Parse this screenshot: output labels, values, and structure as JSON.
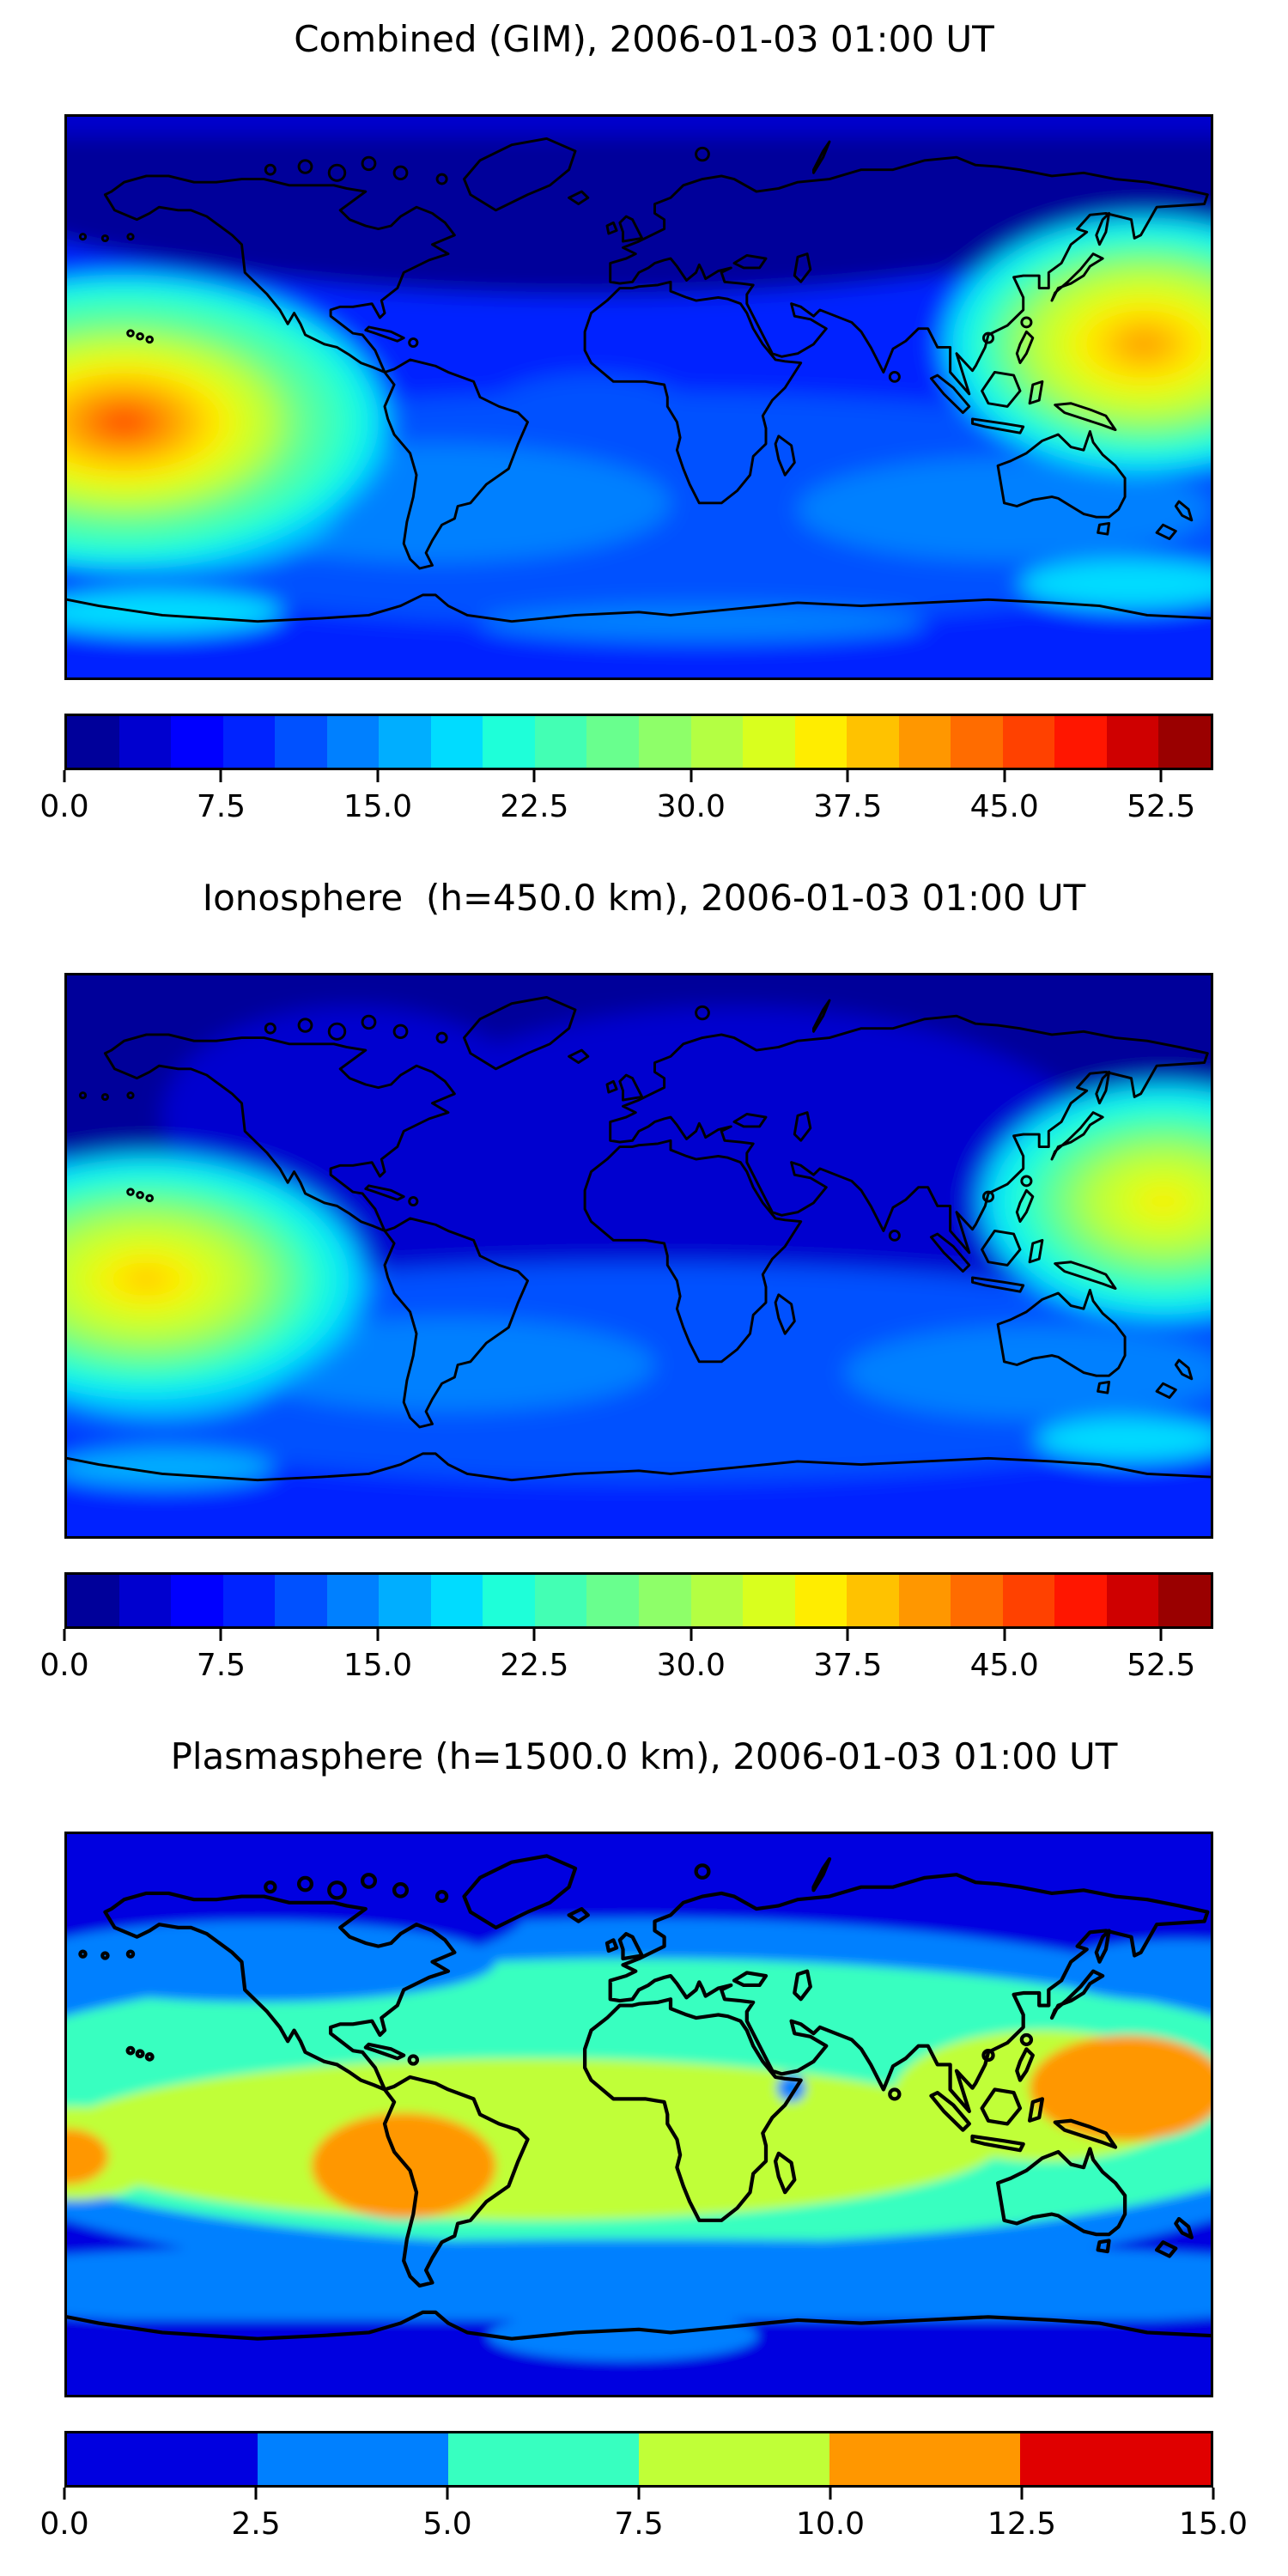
{
  "figure": {
    "background": "#ffffff",
    "description": "Three stacked global TEC contour maps with horizontal colorbars"
  },
  "panels": [
    {
      "id": "combined",
      "title": "Combined (GIM), 2006-01-03 01:00 UT",
      "colorbar": {
        "vmin": 0,
        "vmax": 55,
        "ticks": [
          0,
          7.5,
          15,
          22.5,
          30,
          37.5,
          45,
          52.5
        ],
        "tick_labels": [
          "0.0",
          "7.5",
          "15.0",
          "22.5",
          "30.0",
          "37.5",
          "45.0",
          "52.5"
        ],
        "segment_colors": [
          "#00009A",
          "#0000CF",
          "#0000FF",
          "#0023FF",
          "#0051FF",
          "#0080FF",
          "#00AEFF",
          "#00DCFF",
          "#1EFFD9",
          "#43FFB4",
          "#69FF8E",
          "#8EFF69",
          "#B4FF43",
          "#D9FF1E",
          "#FFED00",
          "#FFC200",
          "#FF9700",
          "#FF6C00",
          "#FF4100",
          "#FF1600",
          "#CF0000",
          "#9A0000"
        ]
      }
    },
    {
      "id": "ionosphere",
      "title": "Ionosphere  (h=450.0 km), 2006-01-03 01:00 UT",
      "colorbar": {
        "vmin": 0,
        "vmax": 55,
        "ticks": [
          0,
          7.5,
          15,
          22.5,
          30,
          37.5,
          45,
          52.5
        ],
        "tick_labels": [
          "0.0",
          "7.5",
          "15.0",
          "22.5",
          "30.0",
          "37.5",
          "45.0",
          "52.5"
        ],
        "segment_colors": [
          "#00009A",
          "#0000CF",
          "#0000FF",
          "#0023FF",
          "#0051FF",
          "#0080FF",
          "#00AEFF",
          "#00DCFF",
          "#1EFFD9",
          "#43FFB4",
          "#69FF8E",
          "#8EFF69",
          "#B4FF43",
          "#D9FF1E",
          "#FFED00",
          "#FFC200",
          "#FF9700",
          "#FF6C00",
          "#FF4100",
          "#FF1600",
          "#CF0000",
          "#9A0000"
        ]
      }
    },
    {
      "id": "plasmasphere",
      "title": "Plasmasphere (h=1500.0 km), 2006-01-03 01:00 UT",
      "colorbar": {
        "vmin": 0,
        "vmax": 15,
        "ticks": [
          0,
          2.5,
          5,
          7.5,
          10,
          12.5,
          15
        ],
        "tick_labels": [
          "0.0",
          "2.5",
          "5.0",
          "7.5",
          "10.0",
          "12.5",
          "15.0"
        ],
        "segment_colors": [
          "#0000E0",
          "#0080FF",
          "#37FFC0",
          "#C0FF37",
          "#FF9700",
          "#E00000"
        ]
      }
    }
  ],
  "chart_data": [
    {
      "type": "heatmap",
      "title": "Combined (GIM), 2006-01-03 01:00 UT",
      "projection": "equirectangular",
      "x_axis": "longitude_deg",
      "x_range": [
        -180,
        180
      ],
      "y_axis": "latitude_deg",
      "y_range": [
        -90,
        90
      ],
      "value_range": [
        0,
        55
      ],
      "contour_interval": 2.5,
      "colormap": "jet",
      "colorbar_ticks": [
        0,
        7.5,
        15,
        22.5,
        30,
        37.5,
        45,
        52.5
      ],
      "features": [
        {
          "name": "dayside-maximum-central-pacific",
          "lon": -162,
          "lat": -8,
          "value": 47.5
        },
        {
          "name": "dayside-maximum-west-pacific",
          "lon": 158,
          "lat": 17,
          "value": 42.5
        },
        {
          "name": "north-polar-minimum",
          "lon": -40,
          "lat": 72,
          "value": 3
        },
        {
          "name": "siberia-minimum",
          "lon": 120,
          "lat": 72,
          "value": 4
        },
        {
          "name": "southern-high-latitude-enhancement",
          "lon": -155,
          "lat": -60,
          "value": 17.5
        },
        {
          "name": "nightside-background",
          "lon": 20,
          "lat": 20,
          "value": 7.5
        }
      ]
    },
    {
      "type": "heatmap",
      "title": "Ionosphere  (h=450.0 km), 2006-01-03 01:00 UT",
      "projection": "equirectangular",
      "x_axis": "longitude_deg",
      "x_range": [
        -180,
        180
      ],
      "y_axis": "latitude_deg",
      "y_range": [
        -90,
        90
      ],
      "value_range": [
        0,
        55
      ],
      "contour_interval": 2.5,
      "colormap": "jet",
      "colorbar_ticks": [
        0,
        7.5,
        15,
        22.5,
        30,
        37.5,
        45,
        52.5
      ],
      "features": [
        {
          "name": "dayside-maximum-central-pacific",
          "lon": -152,
          "lat": -8,
          "value": 37.5
        },
        {
          "name": "dayside-maximum-west-pacific",
          "lon": 163,
          "lat": 20,
          "value": 32.5
        },
        {
          "name": "broad-north-hemisphere-minimum",
          "lon": 20,
          "lat": 55,
          "value": 2.5
        },
        {
          "name": "southern-midlatitude-band",
          "lon": 0,
          "lat": -55,
          "value": 12.5
        },
        {
          "name": "nightside-background",
          "lon": 20,
          "lat": 0,
          "value": 6
        }
      ]
    },
    {
      "type": "heatmap",
      "title": "Plasmasphere (h=1500.0 km), 2006-01-03 01:00 UT",
      "projection": "equirectangular",
      "x_axis": "longitude_deg",
      "x_range": [
        -180,
        180
      ],
      "y_axis": "latitude_deg",
      "y_range": [
        -90,
        90
      ],
      "value_range": [
        0,
        15
      ],
      "contour_interval": 2.5,
      "colormap": "jet",
      "colorbar_ticks": [
        0,
        2.5,
        5,
        7.5,
        10,
        12.5,
        15
      ],
      "features": [
        {
          "name": "equatorial-plasmaspheric-band",
          "lon": 0,
          "lat": 0,
          "value": 8.5,
          "lat_extent": [
            -35,
            40
          ]
        },
        {
          "name": "maximum-south-america",
          "lon": -75,
          "lat": -17,
          "value": 11.5
        },
        {
          "name": "maximum-west-pacific",
          "lon": 155,
          "lat": 7,
          "value": 11.5
        },
        {
          "name": "maximum-left-edge-pacific",
          "lon": -179,
          "lat": -13,
          "value": 11
        },
        {
          "name": "local-dip-horn-of-africa",
          "lon": 48,
          "lat": 8,
          "value": 4
        },
        {
          "name": "north-polar-minimum",
          "lon": 0,
          "lat": 75,
          "value": 1.5
        },
        {
          "name": "south-polar-minimum",
          "lon": 0,
          "lat": -75,
          "value": 1.5
        }
      ]
    }
  ]
}
